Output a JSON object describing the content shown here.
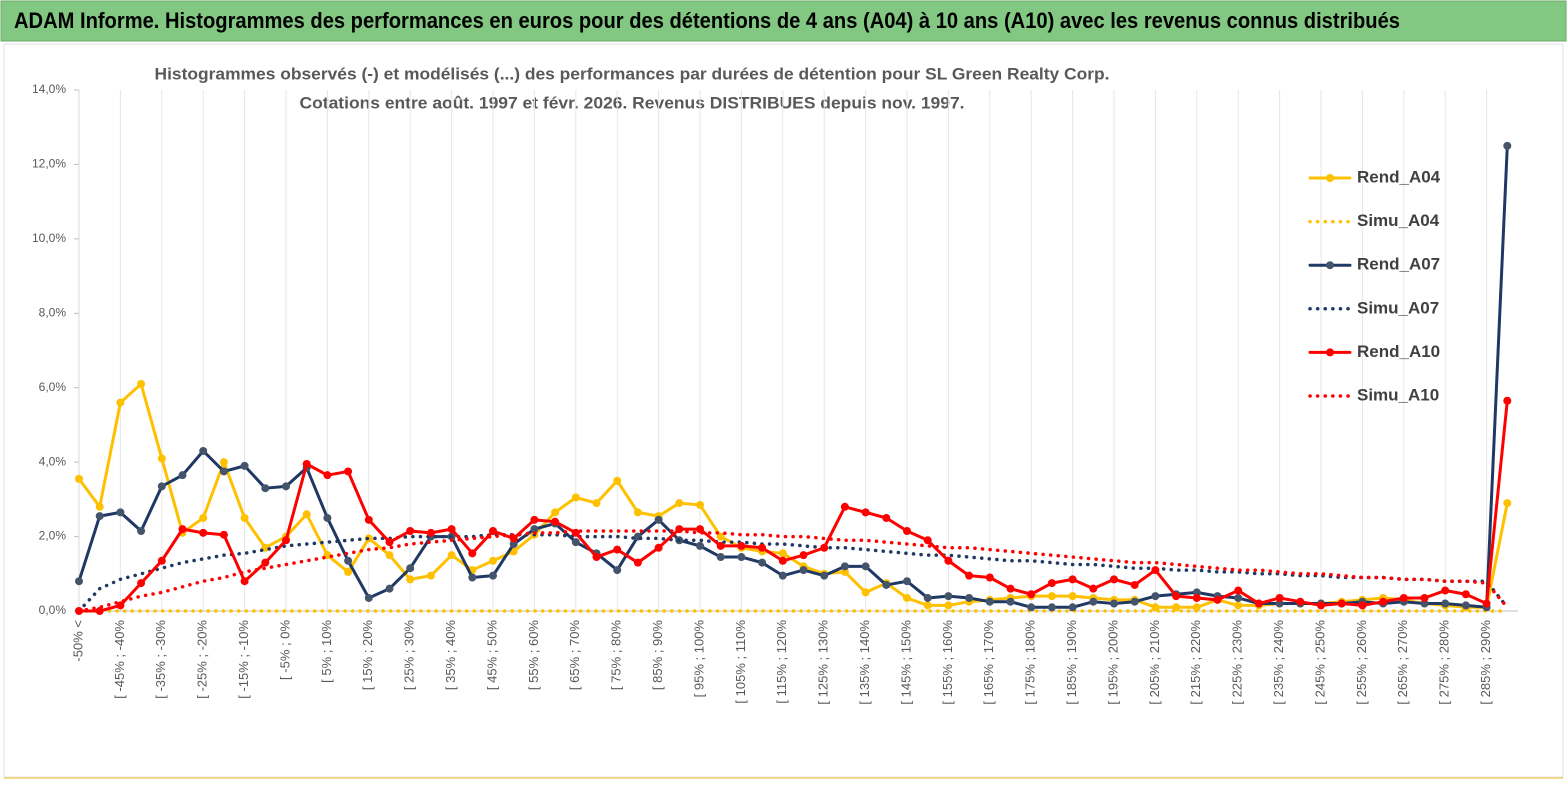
{
  "header": "ADAM Informe. Histogrammes des performances en euros pour des détentions de 4 ans (A04) à 10 ans (A10) avec les revenus connus distribués",
  "chart_data": {
    "type": "line",
    "title": "Histogrammes observés (-) et modélisés (...) des performances par durées de détention pour SL Green Realty Corp.",
    "subtitle": "Cotations entre août. 1997 et févr. 2026. Revenus DISTRIBUES depuis nov. 1997.",
    "categories": [
      "-50% <",
      null,
      "[ -45% ; -40%",
      null,
      "[ -35% ; -30%",
      null,
      "[ -25% ; -20%",
      null,
      "[ -15% ; -10%",
      null,
      "[ -5% ; 0%",
      null,
      "[ 5% ; 10%",
      null,
      "[ 15% ; 20%",
      null,
      "[ 25% ; 30%",
      null,
      "[ 35% ; 40%",
      null,
      "[ 45% ; 50%",
      null,
      "[ 55% ; 60%",
      null,
      "[ 65% ; 70%",
      null,
      "[ 75% ; 80%",
      null,
      "[ 85% ; 90%",
      null,
      "[ 95% ; 100%",
      null,
      "[ 105% ; 110%",
      null,
      "[ 115% ; 120%",
      null,
      "[ 125% ; 130%",
      null,
      "[ 135% ; 140%",
      null,
      "[ 145% ; 150%",
      null,
      "[ 155% ; 160%",
      null,
      "[ 165% ; 170%",
      null,
      "[ 175% ; 180%",
      null,
      "[ 185% ; 190%",
      null,
      "[ 195% ; 200%",
      null,
      "[ 205% ; 210%",
      null,
      "[ 215% ; 220%",
      null,
      "[ 225% ; 230%",
      null,
      "[ 235% ; 240%",
      null,
      "[ 245% ; 250%",
      null,
      "[ 255% ; 260%",
      null,
      "[ 265% ; 270%",
      null,
      "[ 275% ; 280%",
      null,
      "[ 285% ; 290%",
      null
    ],
    "series": [
      {
        "name": "Rend_A04",
        "color": "#ffc000",
        "dash": "solid",
        "marker": true,
        "values": [
          3.55,
          2.8,
          5.6,
          6.1,
          4.1,
          2.1,
          2.5,
          4.0,
          2.5,
          1.7,
          2.0,
          2.6,
          1.5,
          1.05,
          1.95,
          1.5,
          0.85,
          0.95,
          1.5,
          1.1,
          1.35,
          1.6,
          2.05,
          2.65,
          3.05,
          2.9,
          3.5,
          2.65,
          2.55,
          2.9,
          2.85,
          2.0,
          1.7,
          1.6,
          1.55,
          1.2,
          1.0,
          1.05,
          0.5,
          0.75,
          0.35,
          0.15,
          0.15,
          0.25,
          0.3,
          0.35,
          0.4,
          0.4,
          0.4,
          0.35,
          0.3,
          0.3,
          0.1,
          0.1,
          0.1,
          0.3,
          0.15,
          0.15,
          0.2,
          0.2,
          0.2,
          0.25,
          0.3,
          0.35,
          0.3,
          0.2,
          0.15,
          0.1,
          0.1,
          2.9
        ]
      },
      {
        "name": "Simu_A04",
        "color": "#ffc000",
        "dash": "dotted",
        "marker": false,
        "values": [
          0,
          0,
          0,
          0,
          0,
          0,
          0,
          0,
          0,
          0,
          0,
          0,
          0,
          0,
          0,
          0,
          0,
          0,
          0,
          0,
          0,
          0,
          0,
          0,
          0,
          0,
          0,
          0,
          0,
          0,
          0,
          0,
          0,
          0,
          0,
          0,
          0,
          0,
          0,
          0,
          0,
          0,
          0,
          0,
          0,
          0,
          0,
          0,
          0,
          0,
          0,
          0,
          0,
          0,
          0,
          0,
          0,
          0,
          0,
          0,
          0,
          0,
          0,
          0,
          0,
          0,
          0,
          0,
          0,
          0
        ]
      },
      {
        "name": "Rend_A07",
        "color": "#1f3864",
        "dash": "solid",
        "marker": true,
        "values": [
          0.8,
          2.55,
          2.65,
          2.15,
          3.35,
          3.65,
          4.3,
          3.75,
          3.9,
          3.3,
          3.35,
          3.85,
          2.5,
          1.35,
          0.35,
          0.6,
          1.15,
          2.0,
          2.0,
          0.9,
          0.95,
          1.8,
          2.2,
          2.35,
          1.85,
          1.55,
          1.1,
          2.0,
          2.45,
          1.9,
          1.75,
          1.45,
          1.45,
          1.3,
          0.95,
          1.1,
          0.95,
          1.2,
          1.2,
          0.7,
          0.8,
          0.35,
          0.4,
          0.35,
          0.25,
          0.25,
          0.1,
          0.1,
          0.1,
          0.25,
          0.2,
          0.25,
          0.4,
          0.45,
          0.5,
          0.4,
          0.35,
          0.2,
          0.2,
          0.2,
          0.2,
          0.2,
          0.25,
          0.2,
          0.25,
          0.2,
          0.2,
          0.15,
          0.1,
          12.5
        ]
      },
      {
        "name": "Simu_A07",
        "color": "#1f3864",
        "dash": "dotted",
        "marker": false,
        "values": [
          0,
          0.6,
          0.85,
          1.0,
          1.15,
          1.3,
          1.4,
          1.5,
          1.55,
          1.65,
          1.75,
          1.8,
          1.85,
          1.9,
          1.95,
          1.95,
          2.0,
          2.0,
          2.0,
          2.0,
          2.05,
          2.05,
          2.05,
          2.05,
          2.0,
          2.0,
          2.0,
          1.95,
          1.95,
          1.9,
          1.9,
          1.85,
          1.85,
          1.8,
          1.8,
          1.75,
          1.7,
          1.7,
          1.65,
          1.6,
          1.55,
          1.5,
          1.5,
          1.45,
          1.4,
          1.35,
          1.35,
          1.3,
          1.25,
          1.25,
          1.2,
          1.15,
          1.15,
          1.1,
          1.1,
          1.05,
          1.05,
          1.0,
          1.0,
          0.95,
          0.95,
          0.9,
          0.9,
          0.9,
          0.85,
          0.85,
          0.8,
          0.8,
          0.8,
          0.1
        ]
      },
      {
        "name": "Rend_A10",
        "color": "#ff0000",
        "dash": "solid",
        "marker": true,
        "values": [
          0.0,
          0.0,
          0.15,
          0.75,
          1.35,
          2.2,
          2.1,
          2.05,
          0.8,
          1.3,
          1.9,
          3.95,
          3.65,
          3.75,
          2.45,
          1.85,
          2.15,
          2.1,
          2.2,
          1.55,
          2.15,
          1.95,
          2.45,
          2.4,
          2.1,
          1.45,
          1.65,
          1.3,
          1.7,
          2.2,
          2.2,
          1.75,
          1.75,
          1.7,
          1.35,
          1.5,
          1.7,
          2.8,
          2.65,
          2.5,
          2.15,
          1.9,
          1.35,
          0.95,
          0.9,
          0.6,
          0.45,
          0.75,
          0.85,
          0.6,
          0.85,
          0.7,
          1.1,
          0.4,
          0.35,
          0.3,
          0.55,
          0.2,
          0.35,
          0.25,
          0.15,
          0.2,
          0.15,
          0.25,
          0.35,
          0.35,
          0.55,
          0.45,
          0.2,
          5.65
        ]
      },
      {
        "name": "Simu_A10",
        "color": "#ff0000",
        "dash": "dotted",
        "marker": false,
        "values": [
          0,
          0.1,
          0.25,
          0.4,
          0.5,
          0.65,
          0.8,
          0.9,
          1.05,
          1.15,
          1.25,
          1.35,
          1.45,
          1.55,
          1.65,
          1.7,
          1.8,
          1.85,
          1.9,
          1.95,
          2.0,
          2.05,
          2.1,
          2.1,
          2.15,
          2.15,
          2.15,
          2.15,
          2.15,
          2.15,
          2.1,
          2.1,
          2.05,
          2.05,
          2.0,
          2.0,
          1.95,
          1.9,
          1.9,
          1.85,
          1.8,
          1.75,
          1.7,
          1.7,
          1.65,
          1.6,
          1.55,
          1.5,
          1.45,
          1.4,
          1.35,
          1.3,
          1.3,
          1.25,
          1.2,
          1.15,
          1.1,
          1.1,
          1.05,
          1.0,
          1.0,
          0.95,
          0.9,
          0.9,
          0.85,
          0.85,
          0.8,
          0.8,
          0.75,
          0.1
        ]
      }
    ],
    "ylim": [
      0,
      14
    ],
    "yticks": [
      {
        "value": 0,
        "label": "0,0%"
      },
      {
        "value": 2,
        "label": "2,0%"
      },
      {
        "value": 4,
        "label": "4,0%"
      },
      {
        "value": 6,
        "label": "6,0%"
      },
      {
        "value": 8,
        "label": "8,0%"
      },
      {
        "value": 10,
        "label": "10,0%"
      },
      {
        "value": 12,
        "label": "12,0%"
      },
      {
        "value": 14,
        "label": "14,0%"
      }
    ],
    "xgrid": true,
    "legend": "right"
  }
}
